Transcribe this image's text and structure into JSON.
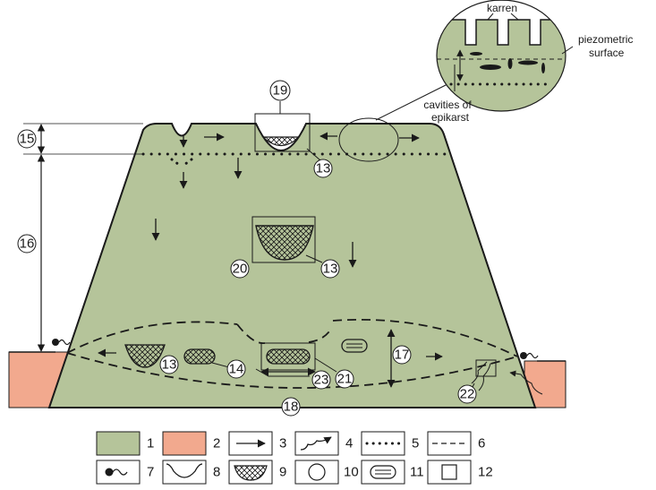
{
  "colors": {
    "limestone": "#b5c49a",
    "host_rock": "#f2a98e",
    "outline": "#1a1a1a",
    "hatch": "#1a1a1a"
  },
  "callout": {
    "karren": "karren",
    "piezometric_line1": "piezometric",
    "piezometric_line2": "surface",
    "cavities_line1": "cavities of",
    "cavities_line2": "epikarst"
  },
  "zones": {
    "n15": "15",
    "n16": "16",
    "n17": "17",
    "n18": "18"
  },
  "features": {
    "n19": "19",
    "n13_top": "13",
    "n13_mid": "13",
    "n20": "20",
    "n13_bottom": "13",
    "n14": "14",
    "n23": "23",
    "n21": "21",
    "n22": "22"
  },
  "legend": [
    {
      "num": "1",
      "icon": "limestone-swatch-icon"
    },
    {
      "num": "2",
      "icon": "host-rock-swatch-icon"
    },
    {
      "num": "3",
      "icon": "flow-arrow-icon"
    },
    {
      "num": "4",
      "icon": "rising-flow-icon"
    },
    {
      "num": "5",
      "icon": "dotted-line-icon"
    },
    {
      "num": "6",
      "icon": "dashed-line-icon"
    },
    {
      "num": "7",
      "icon": "spring-icon"
    },
    {
      "num": "8",
      "icon": "depression-icon"
    },
    {
      "num": "9",
      "icon": "sediment-fill-icon"
    },
    {
      "num": "10",
      "icon": "circle-icon"
    },
    {
      "num": "11",
      "icon": "cave-passage-icon"
    },
    {
      "num": "12",
      "icon": "square-icon"
    }
  ]
}
